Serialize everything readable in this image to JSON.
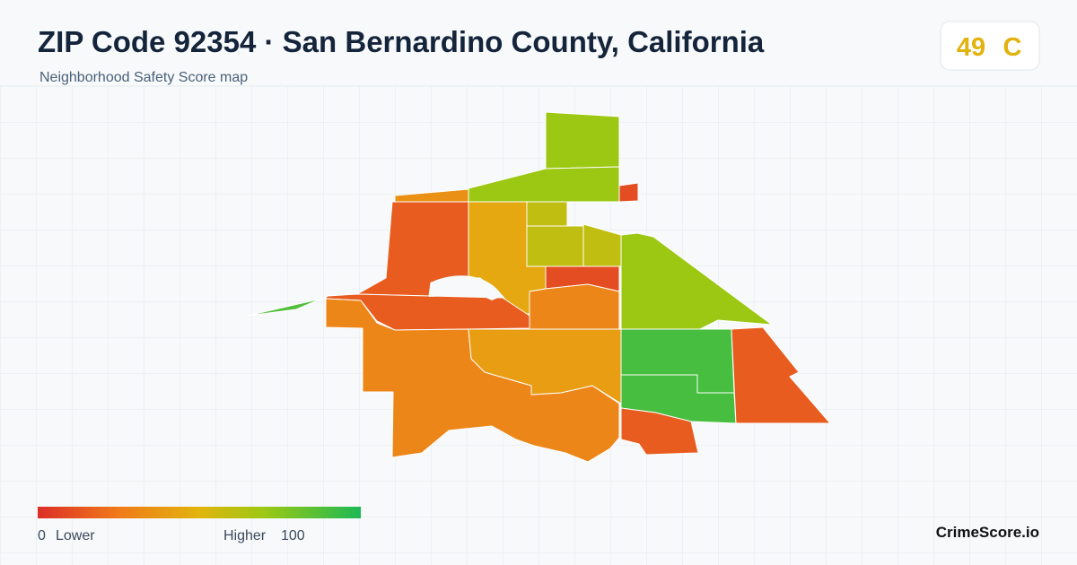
{
  "header": {
    "title": "ZIP Code 92354 · San Bernardino County, California",
    "subtitle": "Neighborhood Safety Score map"
  },
  "score": {
    "value": 49,
    "grade": "C"
  },
  "legend": {
    "min": 0,
    "min_label": "Lower",
    "max_label": "Higher",
    "max": 100
  },
  "regions": [
    {
      "score": 70
    },
    {
      "score": 70
    },
    {
      "score": 10
    },
    {
      "score": 35
    },
    {
      "score": 15
    },
    {
      "score": 45
    },
    {
      "score": 60
    },
    {
      "score": 60
    },
    {
      "score": 60
    },
    {
      "score": 10
    },
    {
      "score": 70
    },
    {
      "score": 30
    },
    {
      "score": 15
    },
    {
      "score": 88
    },
    {
      "score": 30
    },
    {
      "score": 40
    },
    {
      "score": 90
    },
    {
      "score": 90
    },
    {
      "score": 15
    },
    {
      "score": 15
    }
  ],
  "brand": "CrimeScore.io"
}
